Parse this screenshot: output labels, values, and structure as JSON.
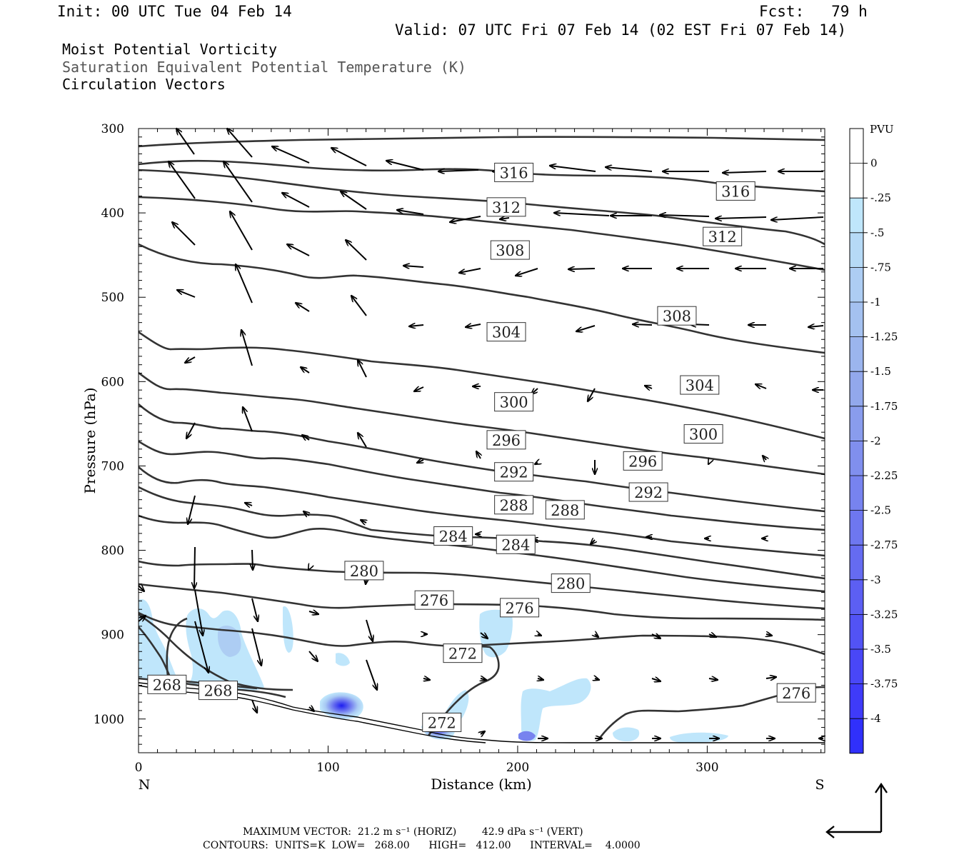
{
  "header": {
    "init": "Init: 00 UTC Tue 04 Feb 14",
    "fcst": "Fcst:   79 h",
    "valid": "Valid: 07 UTC Fri 07 Feb 14 (02 EST Fri 07 Feb 14)",
    "field1": "Moist Potential Vorticity",
    "field2": "Saturation Equivalent Potential Temperature (K)",
    "field3": "Circulation Vectors"
  },
  "footer": {
    "max_vector": "MAXIMUM VECTOR:  21.2 m s⁻¹ (HORIZ)        42.9 dPa s⁻¹ (VERT)",
    "contours": "CONTOURS:  UNITS=K  LOW=   268.00      HIGH=   412.00      INTERVAL=    4.0000"
  },
  "chart_data": {
    "type": "cross-section",
    "xlabel": "Distance (km)",
    "ylabel": "Pressure (hPa)",
    "xlim": [
      0,
      362
    ],
    "ylim": [
      1040,
      300
    ],
    "x_ticks": [
      "0",
      "100",
      "200",
      "300"
    ],
    "x_tick_values": [
      0,
      100,
      200,
      300
    ],
    "y_ticks": [
      "300",
      "400",
      "500",
      "600",
      "700",
      "800",
      "900",
      "1000"
    ],
    "y_tick_values": [
      300,
      400,
      500,
      600,
      700,
      800,
      900,
      1000
    ],
    "left_end": "N",
    "right_end": "S",
    "colorbar": {
      "unit": "PVU",
      "labels": [
        "0",
        "-.25",
        "-.5",
        "-.75",
        "-1",
        "-1.25",
        "-1.5",
        "-1.75",
        "-2",
        "-2.25",
        "-2.5",
        "-2.75",
        "-3",
        "-3.25",
        "-3.5",
        "-3.75",
        "-4"
      ],
      "colors": [
        "#ffffff",
        "#ffffff",
        "#bfe6fb",
        "#b6daf6",
        "#adcdf3",
        "#a4c1f0",
        "#9bb5ee",
        "#92a8ec",
        "#899ced",
        "#808fee",
        "#7783ef",
        "#6e77f0",
        "#656bf1",
        "#5c5ff3",
        "#5253f5",
        "#4947f7",
        "#3f3bf9",
        "#3030fb"
      ]
    },
    "contour_labels": [
      {
        "text": "316",
        "x": 198,
        "p": 352
      },
      {
        "text": "316",
        "x": 315,
        "p": 374
      },
      {
        "text": "312",
        "x": 194,
        "p": 393
      },
      {
        "text": "312",
        "x": 308,
        "p": 428
      },
      {
        "text": "308",
        "x": 196,
        "p": 444
      },
      {
        "text": "308",
        "x": 284,
        "p": 522
      },
      {
        "text": "304",
        "x": 194,
        "p": 541
      },
      {
        "text": "304",
        "x": 296,
        "p": 604
      },
      {
        "text": "300",
        "x": 198,
        "p": 624
      },
      {
        "text": "300",
        "x": 298,
        "p": 662
      },
      {
        "text": "296",
        "x": 194,
        "p": 669
      },
      {
        "text": "296",
        "x": 266,
        "p": 694
      },
      {
        "text": "292",
        "x": 198,
        "p": 707
      },
      {
        "text": "292",
        "x": 269,
        "p": 731
      },
      {
        "text": "288",
        "x": 198,
        "p": 746
      },
      {
        "text": "288",
        "x": 225,
        "p": 752
      },
      {
        "text": "284",
        "x": 166,
        "p": 783
      },
      {
        "text": "284",
        "x": 199,
        "p": 793
      },
      {
        "text": "280",
        "x": 119,
        "p": 824
      },
      {
        "text": "280",
        "x": 228,
        "p": 839
      },
      {
        "text": "276",
        "x": 156,
        "p": 859
      },
      {
        "text": "276",
        "x": 201,
        "p": 868
      },
      {
        "text": "276",
        "x": 347,
        "p": 969
      },
      {
        "text": "272",
        "x": 171,
        "p": 922
      },
      {
        "text": "272",
        "x": 160,
        "p": 1004
      },
      {
        "text": "268",
        "x": 15,
        "p": 959
      },
      {
        "text": "268",
        "x": 42,
        "p": 966
      }
    ]
  }
}
